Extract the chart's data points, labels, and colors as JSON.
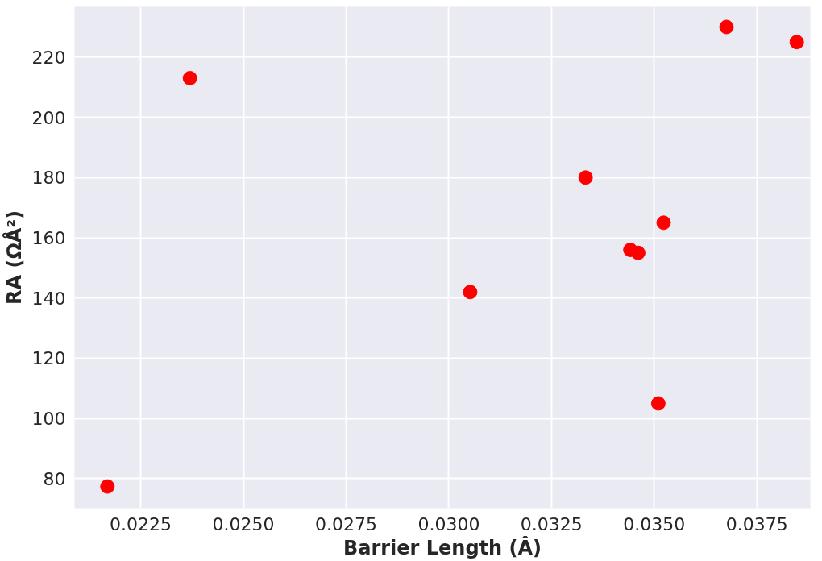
{
  "chart_data": {
    "type": "scatter",
    "xlabel": "Barrier Length (Â)",
    "ylabel": "RA (ΩÅ²)",
    "x": [
      0.02169,
      0.0237,
      0.03052,
      0.03333,
      0.03442,
      0.03461,
      0.03523,
      0.0351,
      0.03676,
      0.03847
    ],
    "series": [
      {
        "color": "#ff0000",
        "values": [
          77.4,
          213,
          142,
          180,
          156,
          155,
          165,
          105,
          230,
          225
        ]
      }
    ],
    "xlim": [
      0.02089,
      0.0388
    ],
    "ylim": [
      70.2,
      236.7
    ],
    "xticks": [
      {
        "value": 0.0225,
        "label": "0.0225"
      },
      {
        "value": 0.025,
        "label": "0.0250"
      },
      {
        "value": 0.0275,
        "label": "0.0275"
      },
      {
        "value": 0.03,
        "label": "0.0300"
      },
      {
        "value": 0.0325,
        "label": "0.0325"
      },
      {
        "value": 0.035,
        "label": "0.0350"
      },
      {
        "value": 0.0375,
        "label": "0.0375"
      }
    ],
    "yticks": [
      80,
      100,
      120,
      140,
      160,
      180,
      200,
      220
    ],
    "grid": true,
    "marker": "circle"
  }
}
